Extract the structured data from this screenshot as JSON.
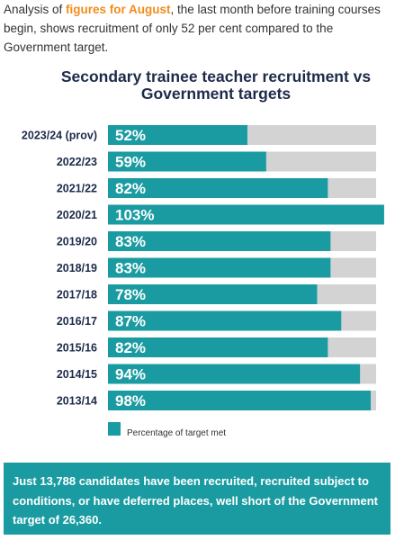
{
  "intro": {
    "before": "Analysis of ",
    "highlight": "figures for August",
    "after": ", the last month before training courses begin, shows recruitment of only 52 per cent compared to the Government target."
  },
  "chart_data": {
    "type": "hbar",
    "title": "Secondary trainee teacher recruitment vs Government targets",
    "categories": [
      "2023/24 (prov)",
      "2022/23",
      "2021/22",
      "2020/21",
      "2019/20",
      "2018/19",
      "2017/18",
      "2016/17",
      "2015/16",
      "2014/15",
      "2013/14"
    ],
    "series": [
      {
        "name": "Percentage of target met",
        "color": "#1a9ba1",
        "values": [
          52,
          59,
          82,
          103,
          83,
          83,
          78,
          87,
          82,
          94,
          98
        ],
        "value_labels": [
          "52%",
          "59%",
          "82%",
          "103%",
          "83%",
          "83%",
          "78%",
          "87%",
          "82%",
          "94%",
          "98%"
        ]
      }
    ],
    "xlim": [
      0,
      100
    ],
    "track_color": "#d3d3d3",
    "legend": "bottom-left"
  },
  "note": "Just 13,788 candidates have been recruited, recruited subject to conditions, or have deferred places, well short of the Government target of 26,360."
}
